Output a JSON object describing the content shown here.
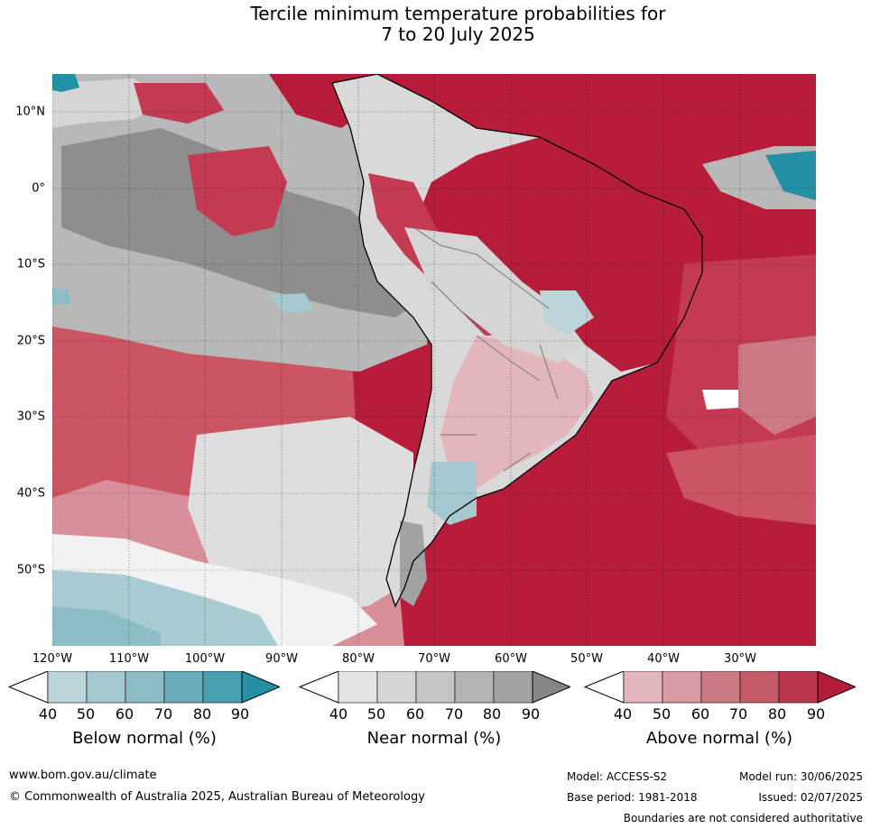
{
  "title": {
    "line1": "Tercile minimum temperature probabilities for",
    "line2": "7 to 20 July 2025"
  },
  "map": {
    "latitude_labels": [
      "10°N",
      "0°",
      "10°S",
      "20°S",
      "30°S",
      "40°S",
      "50°S"
    ],
    "longitude_labels": [
      "120°W",
      "110°W",
      "100°W",
      "90°W",
      "80°W",
      "70°W",
      "60°W",
      "50°W",
      "40°W",
      "30°W"
    ],
    "dominant_signal": "Above normal",
    "colors": {
      "ocean_background": "#b71c3a",
      "land_background": "#dcdcdc"
    }
  },
  "legends": [
    {
      "title": "Below normal (%)",
      "ticks": [
        "40",
        "50",
        "60",
        "70",
        "80",
        "90"
      ],
      "colors": [
        "#ffffff",
        "#bcd5db",
        "#a6c8cf",
        "#8cbcc6",
        "#6aacba",
        "#46a0b2",
        "#2390a5"
      ]
    },
    {
      "title": "Near normal (%)",
      "ticks": [
        "40",
        "50",
        "60",
        "70",
        "80",
        "90"
      ],
      "colors": [
        "#ffffff",
        "#e4e4e4",
        "#d5d5d5",
        "#c5c5c5",
        "#b4b4b4",
        "#a2a2a2",
        "#858585"
      ]
    },
    {
      "title": "Above normal (%)",
      "ticks": [
        "40",
        "50",
        "60",
        "70",
        "80",
        "90"
      ],
      "colors": [
        "#ffffff",
        "#e2b6bc",
        "#d89aa3",
        "#cc7a85",
        "#c35b69",
        "#bb3650",
        "#b51c3a"
      ]
    }
  ],
  "footer": {
    "website": "www.bom.gov.au/climate",
    "copyright": "© Commonwealth of Australia 2025, Australian Bureau of Meteorology",
    "model": "Model: ACCESS-S2",
    "model_run": "Model run: 30/06/2025",
    "base_period": "Base period: 1981-2018",
    "issued": "Issued: 02/07/2025",
    "disclaimer": "Boundaries are not considered authoritative"
  }
}
